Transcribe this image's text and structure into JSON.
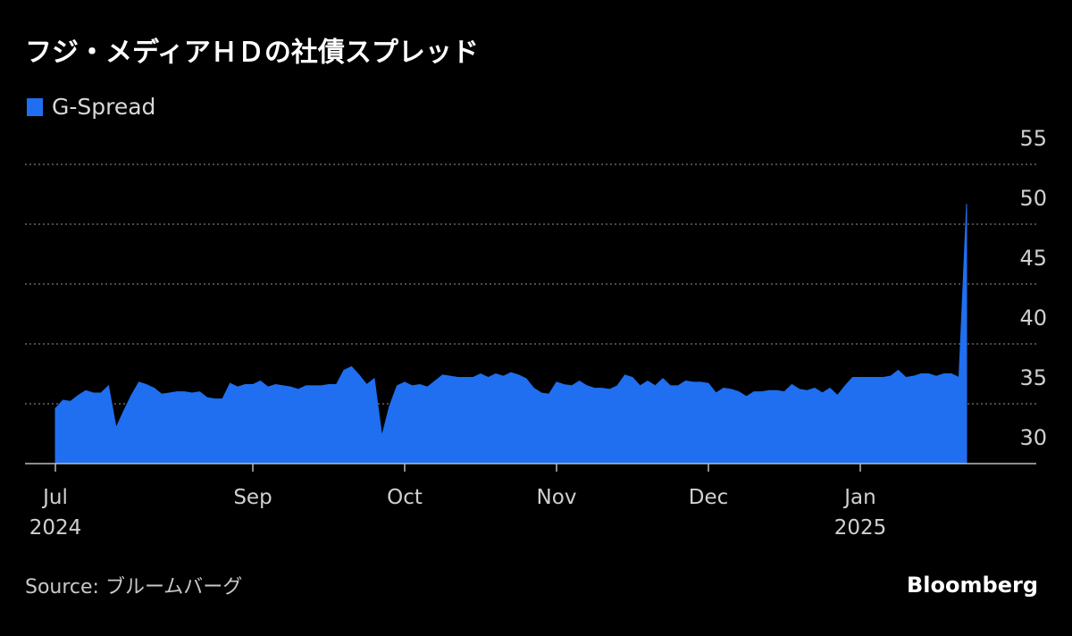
{
  "chart_data": {
    "type": "area",
    "title": "フジ・メディアＨＤの社債スプレッド",
    "source": "Source: ブルームバーグ",
    "credit": "Bloomberg",
    "categories": [
      "Jul\n2024",
      null,
      null,
      null,
      null,
      null,
      null,
      null,
      null,
      null,
      null,
      null,
      null,
      null,
      null,
      null,
      null,
      null,
      null,
      null,
      null,
      null,
      null,
      null,
      null,
      null,
      "Sep",
      null,
      null,
      null,
      null,
      null,
      null,
      null,
      null,
      null,
      null,
      null,
      null,
      null,
      null,
      null,
      null,
      null,
      null,
      null,
      "Oct",
      null,
      null,
      null,
      null,
      null,
      null,
      null,
      null,
      null,
      null,
      null,
      null,
      null,
      null,
      null,
      null,
      null,
      null,
      null,
      "Nov",
      null,
      null,
      null,
      null,
      null,
      null,
      null,
      null,
      null,
      null,
      null,
      null,
      null,
      null,
      null,
      null,
      null,
      null,
      null,
      "Dec",
      null,
      null,
      null,
      null,
      null,
      null,
      null,
      null,
      null,
      null,
      null,
      null,
      null,
      null,
      null,
      null,
      null,
      null,
      null,
      "Jan\n2025",
      null,
      null,
      null,
      null,
      null,
      null,
      null,
      null,
      null,
      null,
      null,
      null,
      null,
      null
    ],
    "series": [
      {
        "name": "G-Spread",
        "color": "#1f6ff0",
        "values": [
          34.6,
          35.3,
          35.2,
          35.7,
          36.1,
          35.9,
          35.9,
          36.5,
          33.0,
          34.4,
          35.7,
          36.8,
          36.6,
          36.3,
          35.8,
          35.9,
          36.0,
          36.0,
          35.9,
          36.0,
          35.5,
          35.4,
          35.4,
          36.7,
          36.4,
          36.6,
          36.6,
          36.9,
          36.4,
          36.6,
          36.5,
          36.4,
          36.2,
          36.5,
          36.5,
          36.5,
          36.6,
          36.6,
          37.8,
          38.1,
          37.4,
          36.6,
          37.1,
          32.3,
          34.8,
          36.5,
          36.8,
          36.5,
          36.6,
          36.4,
          36.9,
          37.4,
          37.3,
          37.2,
          37.2,
          37.2,
          37.5,
          37.2,
          37.5,
          37.3,
          37.6,
          37.4,
          37.1,
          36.3,
          35.9,
          35.8,
          36.8,
          36.6,
          36.5,
          36.9,
          36.5,
          36.3,
          36.3,
          36.2,
          36.5,
          37.4,
          37.2,
          36.5,
          36.9,
          36.5,
          37.1,
          36.5,
          36.5,
          36.9,
          36.8,
          36.8,
          36.7,
          35.9,
          36.3,
          36.2,
          36.0,
          35.6,
          36.0,
          36.0,
          36.1,
          36.1,
          36.0,
          36.6,
          36.2,
          36.1,
          36.3,
          35.9,
          36.3,
          35.7,
          36.5,
          37.2,
          37.2,
          37.2,
          37.2,
          37.2,
          37.3,
          37.8,
          37.2,
          37.3,
          37.5,
          37.5,
          37.3,
          37.5,
          37.5,
          37.2,
          51.7
        ]
      }
    ],
    "ylim": [
      30,
      55
    ],
    "yticks": [
      30,
      35,
      40,
      45,
      50,
      55
    ],
    "grid": true
  }
}
